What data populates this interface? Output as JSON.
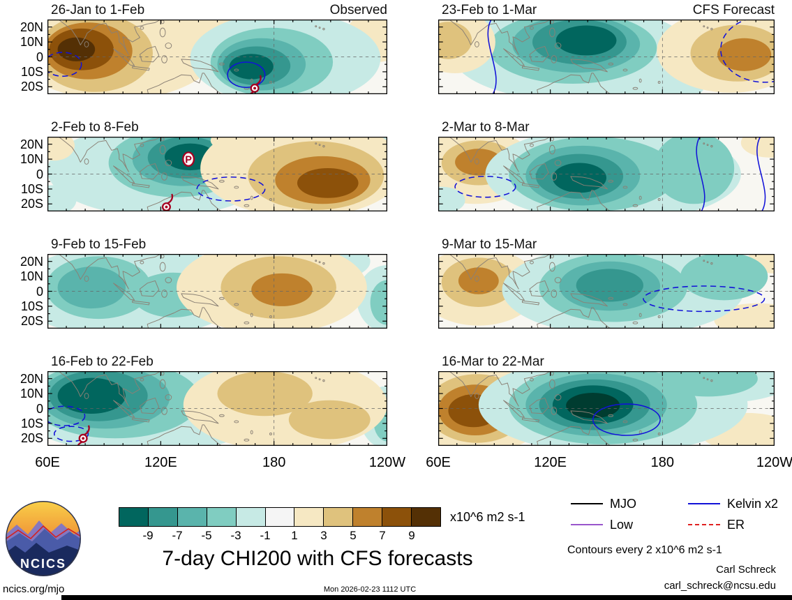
{
  "figure": {
    "title": "7-day CHI200 with CFS forecasts",
    "site": "ncics.org/mjo",
    "timestamp": "Mon 2026-02-23 1112 UTC",
    "credit_name": "Carl Schreck",
    "credit_email": "carl_schreck@ncsu.edu",
    "contour_note": "Contours every 2 x10^6 m2 s-1",
    "units_label": "x10^6 m2 s-1",
    "logo_text": "NCICS"
  },
  "legend": {
    "items": [
      {
        "label": "MJO",
        "color": "#000000",
        "dash": false
      },
      {
        "label": "Kelvin x2",
        "color": "#1212d8",
        "dash": false
      },
      {
        "label": "Low",
        "color": "#9955cc",
        "dash": false
      },
      {
        "label": "ER",
        "color": "#e02020",
        "dash": true
      }
    ]
  },
  "colorbar": {
    "tick_labels": [
      "-9",
      "-7",
      "-5",
      "-3",
      "-1",
      "1",
      "3",
      "5",
      "7",
      "9"
    ],
    "cell_colors": [
      "#01665e",
      "#35978f",
      "#5ab4ac",
      "#80cdc1",
      "#c7eae5",
      "#f5f5f5",
      "#f6e8c3",
      "#dfc27d",
      "#bf812d",
      "#8c510a",
      "#543005"
    ]
  },
  "chart_data": {
    "type": "heatmap",
    "subtype": "filled-contour longitude-latitude anomaly maps of CHI200 (velocity potential), observed weeks vs CFS forecast weeks",
    "title": "7-day CHI200 with CFS forecasts",
    "units": "x10^6 m2 s-1",
    "columns": [
      "Observed",
      "CFS Forecast"
    ],
    "x_ticks": [
      "60E",
      "120E",
      "180",
      "120W"
    ],
    "y_ticks": [
      "20N",
      "10N",
      "0",
      "10S",
      "20S"
    ],
    "lon_range": [
      "60E",
      "120W"
    ],
    "lat_range": [
      "25S",
      "25N"
    ],
    "contour_levels": [
      -9,
      -7,
      -5,
      -3,
      -1,
      1,
      3,
      5,
      7,
      9
    ],
    "kelvin_color": "#1212d8",
    "palette": {
      "N1": "#c7eae5",
      "N2": "#80cdc1",
      "N3": "#5ab4ac",
      "N4": "#35978f",
      "N5": "#01665e",
      "N6": "#003c30",
      "P1": "#f6e8c3",
      "P2": "#dfc27d",
      "P3": "#bf812d",
      "P4": "#8c510a",
      "P5": "#543005"
    },
    "panels": [
      {
        "label": "26-Jan to 1-Feb",
        "corner": "Observed",
        "col": 0,
        "row": 0,
        "anomaly_centers": [
          {
            "lon": "78E",
            "lat": "5S",
            "peak": 10
          },
          {
            "lon": "168E",
            "lat": "8S",
            "peak": -10
          }
        ],
        "blobs": [
          [
            0.2,
            0.28,
            0.32,
            0.8,
            "P1"
          ],
          [
            0.46,
            0.02,
            0.2,
            0.3,
            "P1"
          ],
          [
            0.14,
            0.45,
            0.17,
            0.52,
            "P2"
          ],
          [
            0.12,
            0.42,
            0.13,
            0.38,
            "P3"
          ],
          [
            0.1,
            0.4,
            0.095,
            0.28,
            "P4"
          ],
          [
            0.085,
            0.4,
            0.055,
            0.16,
            "P5"
          ],
          [
            0.97,
            0.22,
            0.09,
            0.35,
            "P1"
          ],
          [
            0.7,
            0.52,
            0.28,
            0.62,
            "N1"
          ],
          [
            0.66,
            0.57,
            0.18,
            0.46,
            "N2"
          ],
          [
            0.63,
            0.6,
            0.13,
            0.35,
            "N3"
          ],
          [
            0.615,
            0.62,
            0.1,
            0.26,
            "N4"
          ],
          [
            0.6,
            0.63,
            0.065,
            0.17,
            "N5"
          ]
        ],
        "contours": [
          {
            "shape": "ellipse",
            "style": "dashed",
            "cx": 0.045,
            "cy": 0.6,
            "rx": 0.055,
            "ry": 0.16
          },
          {
            "shape": "ellipse",
            "style": "solid",
            "cx": 0.585,
            "cy": 0.74,
            "rx": 0.055,
            "ry": 0.17
          }
        ],
        "markers": [
          {
            "type": "tc",
            "x": 0.61,
            "y": 0.92
          }
        ]
      },
      {
        "label": "23-Feb to 1-Mar",
        "corner": "CFS Forecast",
        "col": 1,
        "row": 0,
        "anomaly_centers": [
          {
            "lon": "140E",
            "lat": "10N",
            "peak": -10
          },
          {
            "lon": "68E",
            "lat": "10N",
            "peak": 4
          },
          {
            "lon": "136W",
            "lat": "2N",
            "peak": 6
          }
        ],
        "blobs": [
          [
            0.4,
            0.45,
            0.36,
            0.64,
            "N1"
          ],
          [
            0.4,
            0.38,
            0.25,
            0.48,
            "N2"
          ],
          [
            0.41,
            0.33,
            0.19,
            0.38,
            "N3"
          ],
          [
            0.42,
            0.3,
            0.14,
            0.3,
            "N4"
          ],
          [
            0.44,
            0.28,
            0.09,
            0.2,
            "N5"
          ],
          [
            0.67,
            0.9,
            0.12,
            0.22,
            "N1"
          ],
          [
            0.05,
            0.3,
            0.12,
            0.42,
            "P1"
          ],
          [
            0.03,
            0.28,
            0.07,
            0.25,
            "P2"
          ],
          [
            0.87,
            0.42,
            0.22,
            0.56,
            "P1"
          ],
          [
            0.89,
            0.45,
            0.14,
            0.38,
            "P2"
          ],
          [
            0.91,
            0.47,
            0.08,
            0.22,
            "P3"
          ]
        ],
        "contours": [
          {
            "shape": "wave",
            "style": "solid",
            "x": 0.16
          },
          {
            "shape": "ellipse",
            "style": "dashed",
            "cx": 0.97,
            "cy": 0.4,
            "rx": 0.13,
            "ry": 0.44
          }
        ],
        "markers": []
      },
      {
        "label": "2-Feb to 8-Feb",
        "corner": "",
        "col": 0,
        "row": 1,
        "anomaly_centers": [
          {
            "lon": "136E",
            "lat": "9N",
            "peak": -10
          },
          {
            "lon": "152W",
            "lat": "6S",
            "peak": 10
          }
        ],
        "blobs": [
          [
            0.33,
            0.45,
            0.33,
            0.62,
            "N1"
          ],
          [
            0.38,
            0.35,
            0.2,
            0.46,
            "N2"
          ],
          [
            0.4,
            0.3,
            0.15,
            0.36,
            "N3"
          ],
          [
            0.41,
            0.28,
            0.115,
            0.28,
            "N4"
          ],
          [
            0.42,
            0.27,
            0.075,
            0.18,
            "N5"
          ],
          [
            0.015,
            0.85,
            0.07,
            0.2,
            "N1"
          ],
          [
            0.99,
            0.12,
            0.05,
            0.22,
            "N1"
          ],
          [
            0.75,
            0.42,
            0.3,
            0.66,
            "P1"
          ],
          [
            0.62,
            0.05,
            0.14,
            0.2,
            "P1"
          ],
          [
            0.79,
            0.52,
            0.2,
            0.46,
            "P2"
          ],
          [
            0.81,
            0.58,
            0.14,
            0.32,
            "P3"
          ],
          [
            0.825,
            0.62,
            0.09,
            0.2,
            "P4"
          ],
          [
            0.02,
            0.12,
            0.06,
            0.2,
            "P1"
          ]
        ],
        "contours": [
          {
            "shape": "ellipse",
            "style": "dashed",
            "cx": 0.54,
            "cy": 0.7,
            "rx": 0.1,
            "ry": 0.16
          }
        ],
        "markers": [
          {
            "type": "badge",
            "x": 0.415,
            "y": 0.3,
            "text": "P"
          },
          {
            "type": "tc",
            "x": 0.35,
            "y": 0.94
          }
        ]
      },
      {
        "label": "2-Mar to 8-Mar",
        "corner": "",
        "col": 1,
        "row": 1,
        "anomaly_centers": [
          {
            "lon": "82E",
            "lat": "7N",
            "peak": 6
          },
          {
            "lon": "136E",
            "lat": "2S",
            "peak": -10
          }
        ],
        "blobs": [
          [
            0.11,
            0.4,
            0.18,
            0.5,
            "P1"
          ],
          [
            0.12,
            0.35,
            0.11,
            0.3,
            "P2"
          ],
          [
            0.12,
            0.34,
            0.07,
            0.18,
            "P3"
          ],
          [
            0.99,
            0.08,
            0.09,
            0.2,
            "P1"
          ],
          [
            0.52,
            0.5,
            0.38,
            0.64,
            "N1"
          ],
          [
            0.46,
            0.5,
            0.25,
            0.5,
            "N2"
          ],
          [
            0.43,
            0.52,
            0.17,
            0.4,
            "N3"
          ],
          [
            0.42,
            0.53,
            0.13,
            0.3,
            "N4"
          ],
          [
            0.42,
            0.55,
            0.08,
            0.2,
            "N5"
          ],
          [
            0.76,
            0.42,
            0.12,
            0.48,
            "N2"
          ],
          [
            0.01,
            0.85,
            0.07,
            0.18,
            "N1"
          ]
        ],
        "contours": [
          {
            "shape": "ellipse",
            "style": "dashed",
            "cx": 0.14,
            "cy": 0.67,
            "rx": 0.09,
            "ry": 0.14
          },
          {
            "shape": "wave",
            "style": "solid",
            "x": 0.78
          },
          {
            "shape": "wave",
            "style": "solid",
            "x": 0.96
          }
        ],
        "markers": []
      },
      {
        "label": "9-Feb to 15-Feb",
        "corner": "",
        "col": 0,
        "row": 2,
        "anomaly_centers": [
          {
            "lon": "84E",
            "lat": "2N",
            "peak": -6
          },
          {
            "lon": "178W",
            "lat": "2N",
            "peak": 6
          }
        ],
        "blobs": [
          [
            0.24,
            0.5,
            0.34,
            0.62,
            "N1"
          ],
          [
            0.15,
            0.45,
            0.155,
            0.42,
            "N2"
          ],
          [
            0.13,
            0.45,
            0.1,
            0.28,
            "N3"
          ],
          [
            0.37,
            0.55,
            0.12,
            0.3,
            "N2"
          ],
          [
            0.82,
            0.1,
            0.13,
            0.26,
            "N1"
          ],
          [
            0.77,
            0.08,
            0.08,
            0.18,
            "N2"
          ],
          [
            1.0,
            0.6,
            0.09,
            0.45,
            "N1"
          ],
          [
            1.0,
            0.65,
            0.05,
            0.3,
            "N2"
          ],
          [
            0.66,
            0.45,
            0.28,
            0.62,
            "P1"
          ],
          [
            0.68,
            0.45,
            0.17,
            0.42,
            "P2"
          ],
          [
            0.69,
            0.48,
            0.09,
            0.22,
            "P3"
          ]
        ],
        "contours": [],
        "markers": []
      },
      {
        "label": "9-Mar to 15-Mar",
        "corner": "",
        "col": 1,
        "row": 2,
        "anomaly_centers": [
          {
            "lon": "82E",
            "lat": "8N",
            "peak": 6
          },
          {
            "lon": "152E",
            "lat": "3N",
            "peak": -8
          }
        ],
        "blobs": [
          [
            0.12,
            0.44,
            0.18,
            0.52,
            "P1"
          ],
          [
            0.12,
            0.38,
            0.11,
            0.33,
            "P2"
          ],
          [
            0.12,
            0.36,
            0.06,
            0.18,
            "P3"
          ],
          [
            1.0,
            0.08,
            0.08,
            0.18,
            "P1"
          ],
          [
            0.95,
            0.88,
            0.13,
            0.22,
            "P1"
          ],
          [
            0.55,
            0.48,
            0.36,
            0.62,
            "N1"
          ],
          [
            0.52,
            0.45,
            0.22,
            0.46,
            "N2"
          ],
          [
            0.51,
            0.43,
            0.15,
            0.33,
            "N3"
          ],
          [
            0.51,
            0.42,
            0.1,
            0.22,
            "N4"
          ],
          [
            0.85,
            0.3,
            0.13,
            0.32,
            "N2"
          ]
        ],
        "contours": [
          {
            "shape": "ellipse",
            "style": "dashed",
            "cx": 0.79,
            "cy": 0.6,
            "rx": 0.18,
            "ry": 0.17
          }
        ],
        "markers": []
      },
      {
        "label": "16-Feb to 22-Feb",
        "corner": "",
        "col": 0,
        "row": 3,
        "anomaly_centers": [
          {
            "lon": "84E",
            "lat": "8N",
            "peak": -10
          },
          {
            "lon": "172E",
            "lat": "5N",
            "peak": 4
          }
        ],
        "blobs": [
          [
            0.28,
            0.45,
            0.38,
            0.66,
            "N1"
          ],
          [
            0.2,
            0.38,
            0.25,
            0.52,
            "N2"
          ],
          [
            0.17,
            0.35,
            0.19,
            0.42,
            "N3"
          ],
          [
            0.15,
            0.33,
            0.145,
            0.34,
            "N4"
          ],
          [
            0.13,
            0.33,
            0.1,
            0.24,
            "N5"
          ],
          [
            1.0,
            0.62,
            0.08,
            0.42,
            "N1"
          ],
          [
            1.0,
            0.68,
            0.04,
            0.26,
            "N2"
          ],
          [
            0.7,
            0.45,
            0.3,
            0.62,
            "P1"
          ],
          [
            0.64,
            0.3,
            0.14,
            0.3,
            "P2"
          ],
          [
            0.83,
            0.65,
            0.12,
            0.26,
            "P2"
          ]
        ],
        "contours": [
          {
            "shape": "ellipse",
            "style": "dashed",
            "cx": 0.05,
            "cy": 0.6,
            "rx": 0.06,
            "ry": 0.13
          },
          {
            "shape": "ellipse",
            "style": "dashed",
            "cx": 0.07,
            "cy": 0.84,
            "rx": 0.05,
            "ry": 0.1
          }
        ],
        "markers": [
          {
            "type": "tc",
            "x": 0.105,
            "y": 0.9
          }
        ]
      },
      {
        "label": "16-Mar to 22-Mar",
        "corner": "",
        "col": 1,
        "row": 3,
        "anomaly_centers": [
          {
            "lon": "79E",
            "lat": "1S",
            "peak": 8
          },
          {
            "lon": "143E",
            "lat": "2S",
            "peak": -12
          }
        ],
        "blobs": [
          [
            0.12,
            0.5,
            0.21,
            0.6,
            "P1"
          ],
          [
            0.115,
            0.5,
            0.15,
            0.46,
            "P2"
          ],
          [
            0.11,
            0.52,
            0.11,
            0.34,
            "P3"
          ],
          [
            0.105,
            0.53,
            0.075,
            0.22,
            "P4"
          ],
          [
            0.92,
            0.82,
            0.14,
            0.26,
            "P1"
          ],
          [
            0.52,
            0.45,
            0.4,
            0.66,
            "N1"
          ],
          [
            0.85,
            0.12,
            0.2,
            0.3,
            "N1"
          ],
          [
            0.49,
            0.45,
            0.28,
            0.53,
            "N2"
          ],
          [
            0.47,
            0.45,
            0.21,
            0.42,
            "N3"
          ],
          [
            0.465,
            0.45,
            0.165,
            0.34,
            "N4"
          ],
          [
            0.46,
            0.45,
            0.12,
            0.26,
            "N5"
          ],
          [
            0.46,
            0.46,
            0.08,
            0.17,
            "N6"
          ],
          [
            0.8,
            0.1,
            0.15,
            0.24,
            "N2"
          ]
        ],
        "contours": [
          {
            "shape": "ellipse",
            "style": "solid",
            "cx": 0.56,
            "cy": 0.65,
            "rx": 0.1,
            "ry": 0.21
          }
        ],
        "markers": []
      }
    ]
  }
}
